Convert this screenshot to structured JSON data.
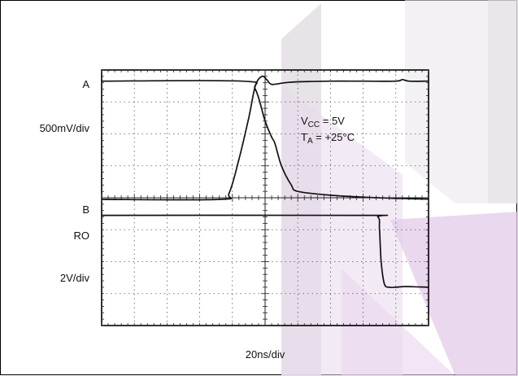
{
  "chart_data": {
    "type": "line",
    "title": "",
    "channel_labels": {
      "a": "A",
      "a_scale": "500mV/div",
      "b": "B",
      "ro": "RO",
      "ro_scale": "2V/div"
    },
    "xlabel": "20ns/div",
    "annotation": {
      "vcc_main": "V",
      "vcc_sub": "CC",
      "vcc_rest": " = 5V",
      "ta_main": "T",
      "ta_sub": "A",
      "ta_rest": " = +25°C"
    },
    "grid": true,
    "x_divisions": 10,
    "y_divisions": 8,
    "x_unit": "div",
    "series": [
      {
        "name": "A",
        "x": [
          0,
          4.3,
          4.7,
          5.0,
          5.2,
          5.3,
          5.5,
          5.8,
          6.0,
          7.0,
          8.0,
          9.0,
          9.2,
          9.4,
          10
        ],
        "y": [
          7.65,
          7.65,
          7.4,
          6.4,
          5.9,
          5.7,
          5.0,
          4.4,
          4.2,
          4.08,
          4.02,
          3.98,
          3.98,
          3.97,
          3.96
        ]
      },
      {
        "name": "B",
        "x": [
          0,
          3.6,
          3.9,
          4.2,
          4.5,
          4.7,
          4.9,
          5.05,
          5.2,
          5.6,
          6.0,
          7.0,
          8.0,
          9.0,
          9.2,
          9.4,
          10
        ],
        "y": [
          3.95,
          3.95,
          4.15,
          5.2,
          6.5,
          7.5,
          7.8,
          7.7,
          7.55,
          7.6,
          7.63,
          7.65,
          7.65,
          7.65,
          7.7,
          7.65,
          7.65
        ]
      },
      {
        "name": "RO",
        "x": [
          0,
          8.0,
          8.45,
          8.5,
          8.55,
          8.65,
          8.8,
          9.0,
          9.3,
          10
        ],
        "y": [
          3.45,
          3.45,
          3.4,
          3.0,
          2.0,
          1.3,
          1.2,
          1.2,
          1.22,
          1.2
        ]
      }
    ]
  }
}
